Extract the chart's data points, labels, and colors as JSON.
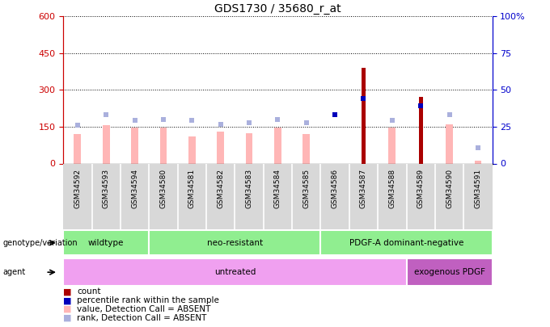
{
  "title": "GDS1730 / 35680_r_at",
  "samples": [
    "GSM34592",
    "GSM34593",
    "GSM34594",
    "GSM34580",
    "GSM34581",
    "GSM34582",
    "GSM34583",
    "GSM34584",
    "GSM34585",
    "GSM34586",
    "GSM34587",
    "GSM34588",
    "GSM34589",
    "GSM34590",
    "GSM34591"
  ],
  "count_values": [
    0,
    0,
    0,
    0,
    0,
    0,
    0,
    0,
    0,
    0,
    390,
    0,
    270,
    0,
    0
  ],
  "percentile_rank_present": [
    0,
    0,
    0,
    0,
    0,
    0,
    0,
    0,
    0,
    200,
    265,
    0,
    235,
    0,
    0
  ],
  "absent_value": [
    120,
    155,
    145,
    148,
    110,
    130,
    125,
    145,
    120,
    0,
    0,
    148,
    0,
    160,
    10
  ],
  "absent_rank": [
    155,
    200,
    175,
    180,
    175,
    160,
    165,
    180,
    165,
    0,
    0,
    175,
    0,
    200,
    65
  ],
  "ylim_left": [
    0,
    600
  ],
  "ylim_right": [
    0,
    100
  ],
  "yticks_left": [
    0,
    150,
    300,
    450,
    600
  ],
  "yticks_right": [
    0,
    25,
    50,
    75,
    100
  ],
  "genotype_groups": [
    {
      "label": "wildtype",
      "start": 0,
      "end": 3
    },
    {
      "label": "neo-resistant",
      "start": 3,
      "end": 9
    },
    {
      "label": "PDGF-A dominant-negative",
      "start": 9,
      "end": 15
    }
  ],
  "agent_groups": [
    {
      "label": "untreated",
      "start": 0,
      "end": 12,
      "color": "#f0a0f0"
    },
    {
      "label": "exogenous PDGF",
      "start": 12,
      "end": 15,
      "color": "#c060c0"
    }
  ],
  "count_color": "#aa0000",
  "percentile_color": "#0000bb",
  "absent_value_color": "#ffb6b6",
  "absent_rank_color": "#aab0dd",
  "geno_color": "#90ee90",
  "left_axis_color": "#cc0000",
  "right_axis_color": "#0000cc"
}
